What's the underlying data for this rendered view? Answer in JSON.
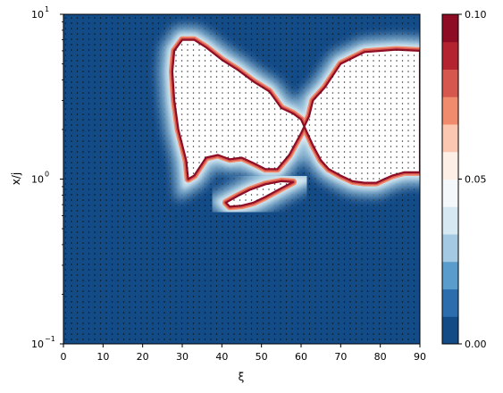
{
  "chart_data": {
    "type": "heatmap",
    "title": "",
    "xlabel": "ξ",
    "ylabel": "x/j",
    "xlim": [
      0,
      90
    ],
    "ylim": [
      0.1,
      10
    ],
    "yscale": "log",
    "x_ticks": [
      "0",
      "10",
      "20",
      "30",
      "40",
      "50",
      "60",
      "70",
      "80",
      "90"
    ],
    "y_ticks": [
      {
        "base": "10",
        "exp": "−1",
        "value": 0.1
      },
      {
        "base": "10",
        "exp": "0",
        "value": 1
      },
      {
        "base": "10",
        "exp": "1",
        "value": 10
      }
    ],
    "colorbar": {
      "range": [
        0.0,
        0.1
      ],
      "levels": 12,
      "tick_labels": [
        "0.00",
        "0.05",
        "0.10"
      ],
      "tick_values": [
        0.0,
        0.05,
        0.1
      ],
      "colors": [
        "#134b87",
        "#2c6ead",
        "#5a9ccb",
        "#a3cae2",
        "#d6e8f1",
        "#f4f8fb",
        "#fdefe6",
        "#fbc7b0",
        "#f08c6d",
        "#d6574d",
        "#b32430",
        "#8f0c25"
      ]
    },
    "regions": [
      {
        "name": "main-hot-region",
        "outline": [
          [
            31.5,
            1.0
          ],
          [
            31,
            1.3
          ],
          [
            29,
            2.0
          ],
          [
            28,
            3.0
          ],
          [
            27.5,
            4.5
          ],
          [
            28,
            6.0
          ],
          [
            30,
            7.0
          ],
          [
            33,
            7.0
          ],
          [
            36,
            6.3
          ],
          [
            40,
            5.3
          ],
          [
            44,
            4.6
          ],
          [
            48,
            3.9
          ],
          [
            52,
            3.4
          ],
          [
            55,
            2.7
          ],
          [
            58,
            2.5
          ],
          [
            60,
            2.3
          ],
          [
            63,
            1.6
          ],
          [
            65,
            1.3
          ],
          [
            67,
            1.15
          ],
          [
            70,
            1.05
          ],
          [
            73,
            0.97
          ],
          [
            76,
            0.95
          ],
          [
            79,
            0.95
          ],
          [
            81,
            1.0
          ],
          [
            83,
            1.05
          ],
          [
            86,
            1.1
          ],
          [
            90,
            1.1
          ],
          [
            90,
            6.0
          ],
          [
            84,
            6.1
          ],
          [
            76,
            5.9
          ],
          [
            70,
            5.0
          ],
          [
            66,
            3.6
          ],
          [
            63,
            3.0
          ],
          [
            62,
            2.4
          ],
          [
            60,
            1.9
          ],
          [
            57,
            1.4
          ],
          [
            54,
            1.15
          ],
          [
            51,
            1.15
          ],
          [
            48,
            1.25
          ],
          [
            45,
            1.35
          ],
          [
            42,
            1.32
          ],
          [
            39,
            1.4
          ],
          [
            36,
            1.35
          ],
          [
            33,
            1.05
          ]
        ],
        "value": 0.1
      },
      {
        "name": "lower-streak",
        "outline": [
          [
            41,
            0.72
          ],
          [
            44,
            0.79
          ],
          [
            47,
            0.86
          ],
          [
            51,
            0.93
          ],
          [
            55,
            0.97
          ],
          [
            58,
            0.96
          ],
          [
            55,
            0.88
          ],
          [
            51,
            0.78
          ],
          [
            48,
            0.72
          ],
          [
            45,
            0.69
          ],
          [
            42,
            0.68
          ]
        ],
        "value": 0.1
      }
    ],
    "dot_stipple": "points below the threshold marked with black dots"
  }
}
